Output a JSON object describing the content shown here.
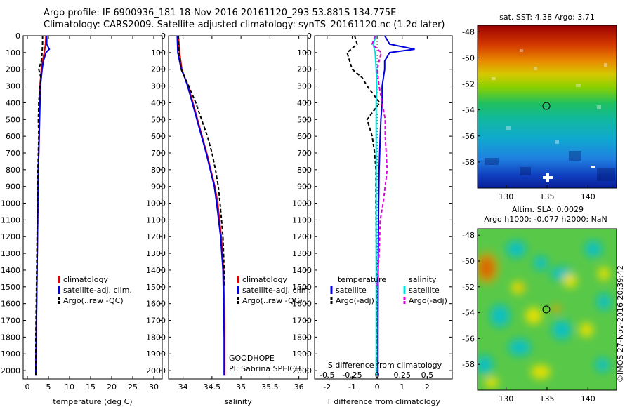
{
  "header": {
    "line1": "Argo profile: IF 6900936_181 18-Nov-2016 20161120_293 53.881S 134.775E",
    "line2": "Climatology: CARS2009. Satellite-adjusted climatology: synTS_20161120.nc (1.2d later)"
  },
  "colors": {
    "climatology": "#e00000",
    "satellite": "#0000e0",
    "argo": "#000000",
    "sal_diff_satellite": "#00e0e0",
    "sal_diff_argo": "#e000e0"
  },
  "chart_data": [
    {
      "type": "line",
      "name": "temperature_profile",
      "xlabel": "temperature (deg C)",
      "ylabel": "",
      "xlim": [
        -1,
        32
      ],
      "ylim": [
        2050,
        0
      ],
      "y_inverted": true,
      "xticks": [
        0,
        5,
        10,
        15,
        20,
        25,
        30
      ],
      "yticks": [
        0,
        100,
        200,
        300,
        400,
        500,
        600,
        700,
        800,
        900,
        1000,
        1100,
        1200,
        1300,
        1400,
        1500,
        1600,
        1700,
        1800,
        1900,
        2000
      ],
      "legend": [
        "climatology",
        "satellite-adj. clim.",
        "Argo(..raw -QC)"
      ],
      "series": [
        {
          "name": "climatology",
          "depth": [
            0,
            50,
            100,
            150,
            200,
            300,
            400,
            500,
            600,
            700,
            800,
            1000,
            1200,
            1400,
            1600,
            1800,
            2000,
            2030
          ],
          "values": [
            4.4,
            4.3,
            4.0,
            3.6,
            3.3,
            3.0,
            2.9,
            2.8,
            2.8,
            2.7,
            2.6,
            2.5,
            2.4,
            2.3,
            2.2,
            2.1,
            2.0,
            2.0
          ]
        },
        {
          "name": "satellite-adj. clim.",
          "depth": [
            0,
            50,
            80,
            100,
            150,
            200,
            300,
            400,
            500,
            600,
            700,
            800,
            1000,
            1200,
            1400,
            1600,
            1800,
            2000,
            2030
          ],
          "values": [
            4.6,
            4.6,
            5.2,
            4.4,
            3.8,
            3.5,
            3.1,
            3.0,
            2.9,
            2.8,
            2.7,
            2.6,
            2.5,
            2.4,
            2.3,
            2.2,
            2.1,
            2.0,
            2.0
          ]
        },
        {
          "name": "Argo(..raw -QC)",
          "depth": [
            0,
            50,
            100,
            150,
            200,
            250,
            300,
            400,
            500,
            600,
            700,
            800,
            1000,
            1200,
            1400,
            1600,
            1800,
            2000,
            2030
          ],
          "values": [
            3.6,
            3.6,
            3.5,
            3.3,
            2.7,
            3.2,
            3.0,
            2.7,
            2.6,
            2.7,
            2.6,
            2.5,
            2.4,
            2.3,
            2.2,
            2.1,
            2.0,
            2.0,
            2.0
          ]
        }
      ]
    },
    {
      "type": "line",
      "name": "salinity_profile",
      "xlabel": "salinity",
      "xlim": [
        33.75,
        36.15
      ],
      "ylim": [
        2050,
        0
      ],
      "y_inverted": true,
      "xticks": [
        34,
        34.5,
        35,
        35.5,
        36
      ],
      "legend": [
        "climatology",
        "satellite-adj. clim.",
        "Argo(..raw -QC)"
      ],
      "annotations": [
        "GOODHOPE",
        "PI: Sabrina SPEICH"
      ],
      "series": [
        {
          "name": "climatology",
          "depth": [
            0,
            100,
            200,
            250,
            300,
            400,
            500,
            600,
            700,
            800,
            900,
            1000,
            1200,
            1400,
            1600,
            1800,
            2030
          ],
          "values": [
            33.92,
            33.94,
            33.98,
            34.03,
            34.09,
            34.17,
            34.25,
            34.33,
            34.41,
            34.48,
            34.55,
            34.6,
            34.66,
            34.7,
            34.71,
            34.72,
            34.72
          ]
        },
        {
          "name": "satellite-adj. clim.",
          "depth": [
            0,
            100,
            200,
            250,
            300,
            400,
            500,
            600,
            700,
            800,
            900,
            1000,
            1200,
            1400,
            1600,
            1800,
            2030
          ],
          "values": [
            33.9,
            33.91,
            33.97,
            34.03,
            34.08,
            34.16,
            34.24,
            34.32,
            34.4,
            34.47,
            34.54,
            34.58,
            34.65,
            34.69,
            34.7,
            34.71,
            34.71
          ]
        },
        {
          "name": "Argo(..raw -QC)",
          "depth": [
            0,
            100,
            200,
            250,
            300,
            400,
            500,
            600,
            700,
            800,
            900,
            1000,
            1200,
            1400,
            1500
          ],
          "values": [
            33.92,
            33.93,
            33.97,
            34.03,
            34.1,
            34.22,
            34.32,
            34.42,
            34.5,
            34.56,
            34.61,
            34.64,
            34.69,
            34.71,
            34.72
          ]
        }
      ]
    },
    {
      "type": "line",
      "name": "difference_from_climatology",
      "xlabel": "T difference from climatology",
      "xlabel_top": "S difference from climatology",
      "xlim": [
        -2.5,
        3.0
      ],
      "ylim": [
        2050,
        0
      ],
      "y_inverted": true,
      "xticks": [
        -2,
        -1,
        0,
        1,
        2
      ],
      "xticks_top": [
        -0.5,
        -0.25,
        0,
        0.25,
        0.5
      ],
      "legend_left_title": "temperature",
      "legend_right_title": "salinity",
      "legend": [
        "satellite",
        "Argo(-adj)",
        "satellite",
        "Argo(-adj)"
      ],
      "series": [
        {
          "name": "temperature satellite",
          "depth": [
            0,
            50,
            80,
            100,
            150,
            200,
            300,
            400,
            500,
            600,
            700,
            800,
            1000,
            1400,
            1800,
            2030
          ],
          "values": [
            0.3,
            0.5,
            1.5,
            0.5,
            0.3,
            0.3,
            0.2,
            0.2,
            0.15,
            0.12,
            0.1,
            0.08,
            0.06,
            0.04,
            0.03,
            0.03
          ]
        },
        {
          "name": "temperature Argo(-adj)",
          "depth": [
            0,
            50,
            100,
            200,
            250,
            300,
            400,
            500,
            600,
            700,
            800,
            1000,
            1400,
            1800,
            2030
          ],
          "values": [
            -0.9,
            -0.8,
            -1.2,
            -1.0,
            -0.6,
            -0.4,
            0.1,
            -0.4,
            -0.2,
            -0.1,
            -0.05,
            -0.05,
            -0.03,
            -0.03,
            -0.03
          ]
        },
        {
          "name": "salinity satellite",
          "depth": [
            0,
            50,
            100,
            200,
            300,
            400,
            500,
            600,
            800,
            1000,
            1400,
            1800,
            2030
          ],
          "values": [
            -0.01,
            -0.04,
            -0.02,
            -0.01,
            -0.005,
            -0.01,
            -0.01,
            -0.01,
            -0.01,
            -0.01,
            -0.01,
            -0.01,
            -0.01
          ]
        },
        {
          "name": "salinity Argo(-adj)",
          "depth": [
            0,
            50,
            100,
            200,
            300,
            400,
            500,
            600,
            700,
            800,
            900,
            1000,
            1100,
            1300,
            1500
          ],
          "values": [
            -0.02,
            -0.05,
            0.04,
            0.0,
            0.02,
            0.05,
            0.08,
            0.08,
            0.09,
            0.1,
            0.08,
            0.06,
            0.03,
            0.02,
            0.0
          ]
        }
      ]
    },
    {
      "type": "heatmap",
      "name": "sst_map",
      "title": "sat. SST: 4.38 Argo: 3.71",
      "xlim": [
        126.5,
        143.5
      ],
      "ylim": [
        -60,
        -47.5
      ],
      "xticks": [
        130,
        135,
        140
      ],
      "yticks": [
        -48,
        -50,
        -52,
        -54,
        -56,
        -58
      ],
      "marker": {
        "lon": 134.775,
        "lat": -53.881
      }
    },
    {
      "type": "heatmap",
      "name": "sla_map",
      "title": "Altim. SLA: 0.0029",
      "subtitle": "Argo h1000: -0.077 h2000: NaN",
      "xlim": [
        126.5,
        143.5
      ],
      "ylim": [
        -60,
        -47.5
      ],
      "xticks": [
        130,
        135,
        140
      ],
      "yticks": [
        -48,
        -50,
        -52,
        -54,
        -56,
        -58
      ],
      "marker": {
        "lon": 134.775,
        "lat": -53.881
      }
    }
  ],
  "stamp": "©IMOS 27-Nov-2016 20:39:42"
}
